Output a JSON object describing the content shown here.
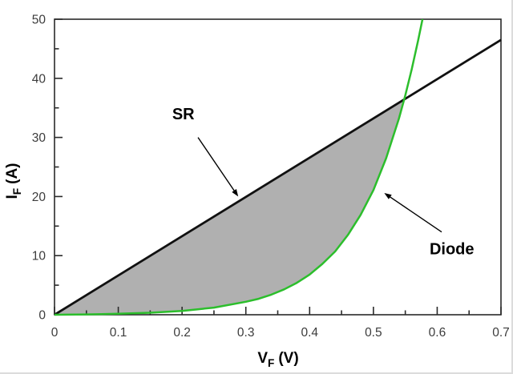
{
  "chart_data": {
    "type": "line",
    "title": "",
    "xlabel": {
      "base": "V",
      "sub": "F",
      "unit": "(V)"
    },
    "ylabel": {
      "base": "I",
      "sub": "F",
      "unit": "(A)"
    },
    "xlim": [
      0,
      0.7
    ],
    "ylim": [
      0,
      50
    ],
    "grid": false,
    "x_major_ticks": [
      0,
      0.1,
      0.2,
      0.3,
      0.4,
      0.5,
      0.6,
      0.7
    ],
    "x_tick_labels": [
      "0",
      "0.1",
      "0.2",
      "0.3",
      "0.4",
      "0.5",
      "0.6",
      "0.7"
    ],
    "x_minor_ticks": [
      0.05,
      0.15,
      0.25,
      0.35,
      0.45,
      0.55,
      0.65
    ],
    "y_major_ticks": [
      0,
      10,
      20,
      30,
      40,
      50
    ],
    "y_tick_labels": [
      "0",
      "10",
      "20",
      "30",
      "40",
      "50"
    ],
    "y_minor_ticks": [
      5,
      15,
      25,
      35,
      45
    ],
    "series": [
      {
        "name": "SR",
        "type": "line",
        "color": "#111111",
        "width": 2.8,
        "points": [
          [
            0,
            0
          ],
          [
            0.7,
            46.5
          ]
        ]
      },
      {
        "name": "Diode",
        "type": "line",
        "color": "#2cbe2c",
        "width": 2.5,
        "points": [
          [
            0,
            0
          ],
          [
            0.05,
            0.06
          ],
          [
            0.1,
            0.16
          ],
          [
            0.15,
            0.34
          ],
          [
            0.2,
            0.65
          ],
          [
            0.25,
            1.2
          ],
          [
            0.3,
            2.2
          ],
          [
            0.32,
            2.7
          ],
          [
            0.34,
            3.4
          ],
          [
            0.36,
            4.3
          ],
          [
            0.38,
            5.4
          ],
          [
            0.4,
            6.8
          ],
          [
            0.42,
            8.6
          ],
          [
            0.44,
            10.7
          ],
          [
            0.46,
            13.5
          ],
          [
            0.48,
            16.9
          ],
          [
            0.5,
            21.1
          ],
          [
            0.52,
            26.5
          ],
          [
            0.54,
            33.2
          ],
          [
            0.55,
            37.1
          ],
          [
            0.56,
            41.5
          ],
          [
            0.57,
            46.4
          ],
          [
            0.577,
            50
          ]
        ]
      }
    ],
    "intersection": [
      0.549,
      36.5
    ],
    "shaded_region": {
      "color": "#b0b0b0",
      "between": [
        "SR",
        "Diode"
      ],
      "from_v": 0,
      "to_v": 0.549
    },
    "annotations": [
      {
        "text": "SR",
        "text_xy": [
          0.202,
          34.0
        ],
        "arrow_from_xy": [
          0.225,
          30.0
        ],
        "arrow_to_xy": [
          0.288,
          20.0
        ]
      },
      {
        "text": "Diode",
        "text_xy": [
          0.623,
          11.2
        ],
        "arrow_from_xy": [
          0.607,
          14.0
        ],
        "arrow_to_xy": [
          0.517,
          20.6
        ]
      }
    ],
    "frame_color": "#2a2a2a",
    "tick_label_color": "#3c3c3c",
    "annotation_color": "#000000",
    "background": "#ffffff"
  }
}
